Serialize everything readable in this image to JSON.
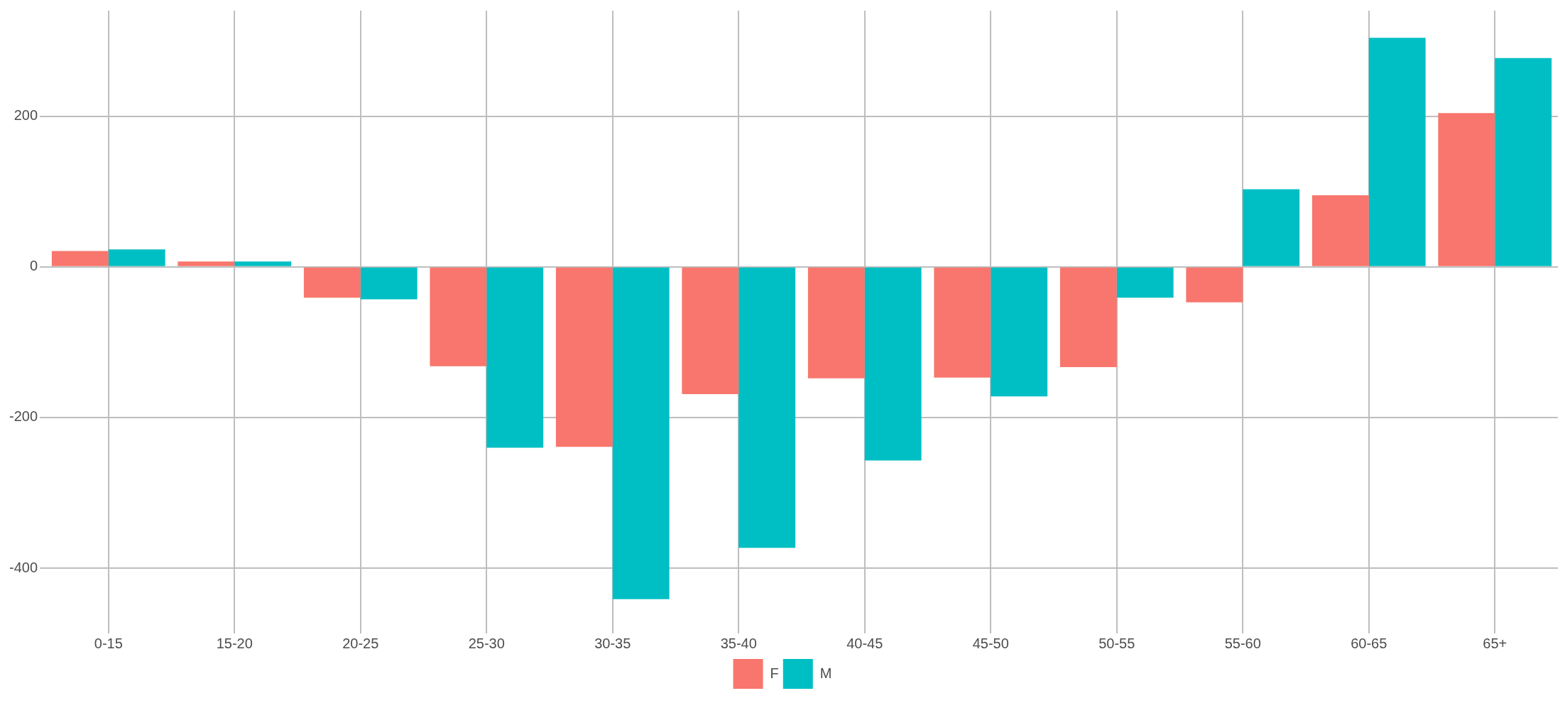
{
  "chart_data": {
    "type": "bar",
    "categories": [
      "0-15",
      "15-20",
      "20-25",
      "25-30",
      "30-35",
      "35-40",
      "40-45",
      "45-50",
      "50-55",
      "55-60",
      "60-65",
      "65+"
    ],
    "series": [
      {
        "name": "F",
        "color": "#f8766d",
        "values": [
          21,
          7,
          -41,
          -132,
          -239,
          -169,
          -148,
          -147,
          -133,
          -47,
          95,
          204
        ]
      },
      {
        "name": "M",
        "color": "#00bfc4",
        "values": [
          23,
          7,
          -43,
          -240,
          -441,
          -373,
          -257,
          -172,
          -41,
          103,
          304,
          277
        ]
      }
    ],
    "ylim": [
      -479,
      340
    ],
    "yticks": [
      -400,
      -200,
      0,
      200
    ],
    "grid": true,
    "legend": "bottom"
  }
}
